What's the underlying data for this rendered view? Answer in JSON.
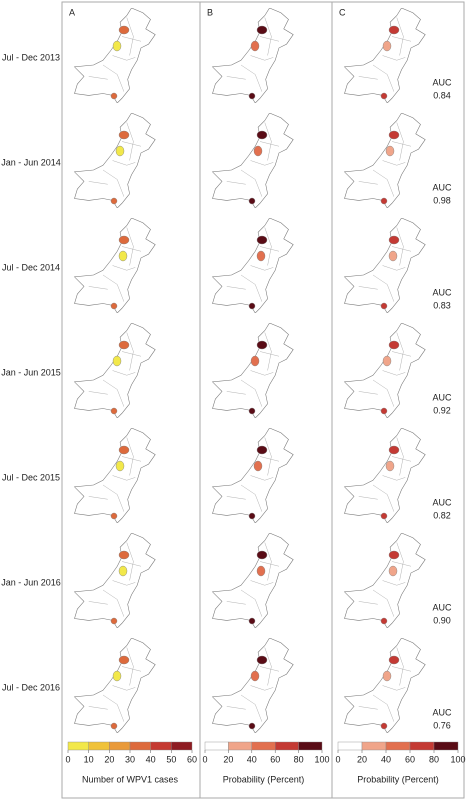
{
  "panels": [
    "A",
    "B",
    "C"
  ],
  "periods": [
    "Jul - Dec 2013",
    "Jan - Jun 2014",
    "Jul - Dec 2014",
    "Jan - Jun 2015",
    "Jul - Dec 2015",
    "Jan - Jun 2016",
    "Jul - Dec 2016"
  ],
  "auc": {
    "label": "AUC",
    "values": [
      "0.84",
      "0.98",
      "0.83",
      "0.92",
      "0.82",
      "0.90",
      "0.76"
    ]
  },
  "legends": [
    {
      "title": "Number of WPV1 cases",
      "ticks": [
        0,
        10,
        20,
        30,
        40,
        50,
        60
      ],
      "colors": [
        "#f2e84a",
        "#f0c23a",
        "#e99a3a",
        "#dd6a3c",
        "#c53a32",
        "#8e1c22"
      ]
    },
    {
      "title": "Probability (Percent)",
      "ticks": [
        0,
        20,
        40,
        60,
        80,
        100
      ],
      "colors": [
        "#ffffff",
        "#f0a58a",
        "#e2704f",
        "#c43a34",
        "#5a0c16"
      ]
    },
    {
      "title": "Probability (Percent)",
      "ticks": [
        0,
        20,
        40,
        60,
        80,
        100
      ],
      "colors": [
        "#ffffff",
        "#f0a58a",
        "#e2704f",
        "#c43a34",
        "#5a0c16"
      ]
    }
  ]
}
